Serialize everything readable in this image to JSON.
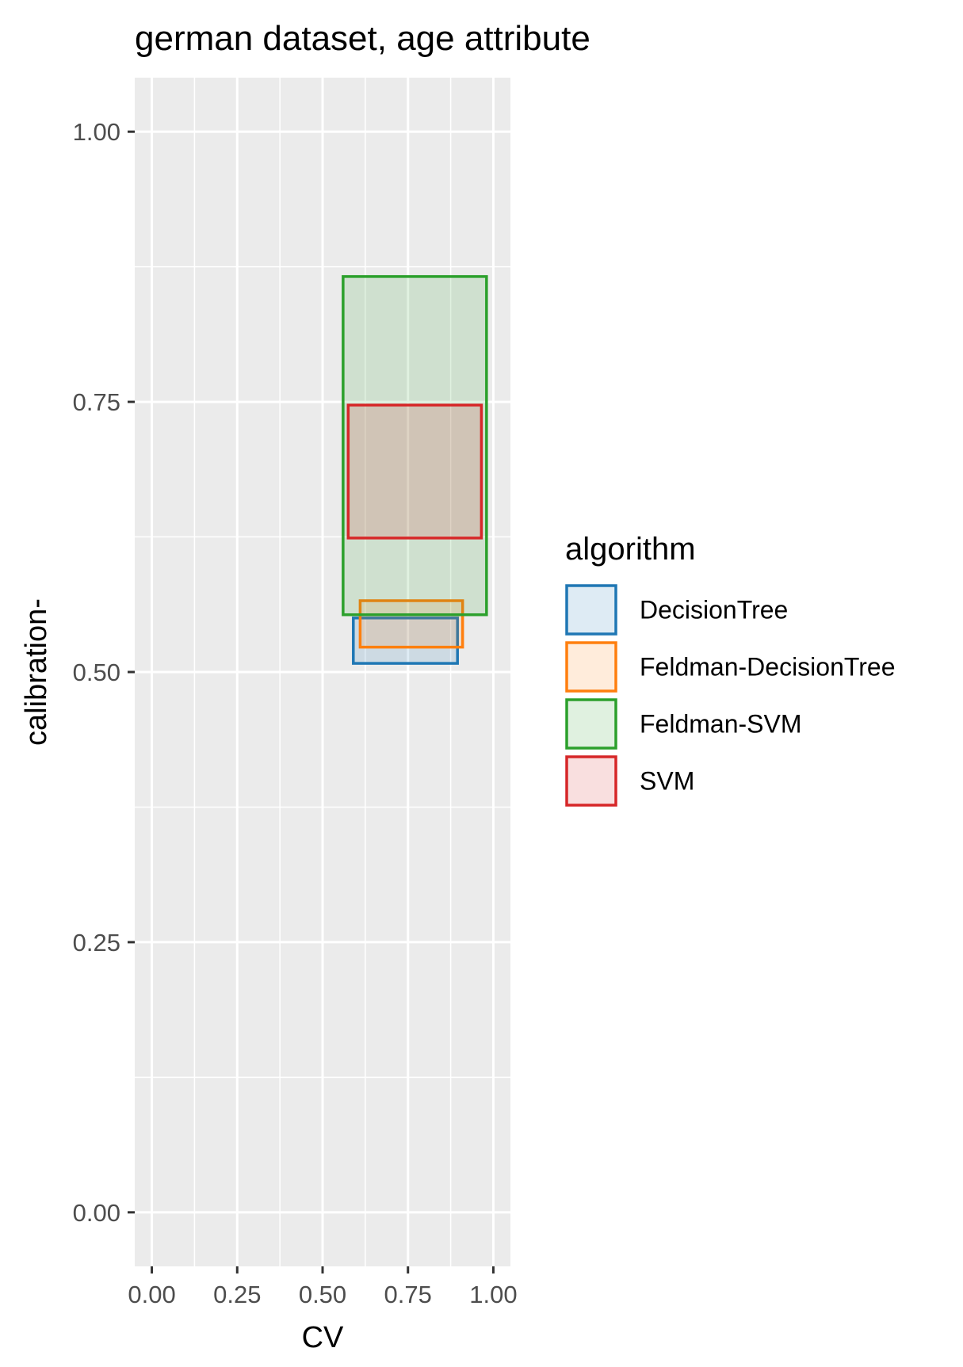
{
  "chart_data": {
    "type": "rect",
    "title": "german dataset, age attribute",
    "xlabel": "CV",
    "ylabel": "calibration-",
    "xlim": [
      -0.05,
      1.05
    ],
    "ylim": [
      -0.05,
      1.05
    ],
    "xticks": [
      0.0,
      0.25,
      0.5,
      0.75,
      1.0
    ],
    "xtick_labels": [
      "0.00",
      "0.25",
      "0.50",
      "0.75",
      "1.00"
    ],
    "yticks": [
      0.0,
      0.25,
      0.5,
      0.75,
      1.0
    ],
    "ytick_labels": [
      "0.00",
      "0.25",
      "0.50",
      "0.75",
      "1.00"
    ],
    "grid": true,
    "legend": {
      "title": "algorithm",
      "placement": "right"
    },
    "series": [
      {
        "name": "DecisionTree",
        "color": "#1f77b4",
        "xmin": 0.59,
        "xmax": 0.895,
        "ymin": 0.508,
        "ymax": 0.55
      },
      {
        "name": "Feldman-DecisionTree",
        "color": "#ff7f0e",
        "xmin": 0.61,
        "xmax": 0.91,
        "ymin": 0.523,
        "ymax": 0.566
      },
      {
        "name": "Feldman-SVM",
        "color": "#2ca02c",
        "xmin": 0.56,
        "xmax": 0.98,
        "ymin": 0.553,
        "ymax": 0.866
      },
      {
        "name": "SVM",
        "color": "#d62728",
        "xmin": 0.575,
        "xmax": 0.965,
        "ymin": 0.624,
        "ymax": 0.747
      }
    ]
  }
}
